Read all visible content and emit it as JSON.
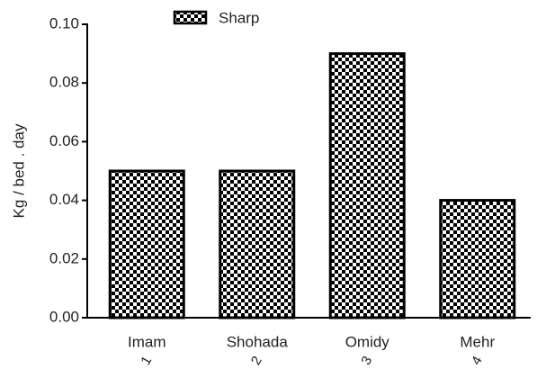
{
  "chart_data": {
    "type": "bar",
    "legend": "Sharp",
    "ylabel": "Kg / bed . day",
    "categories": [
      "Imam",
      "Shohada",
      "Omidy",
      "Mehr"
    ],
    "category_numbers": [
      "1",
      "2",
      "3",
      "4"
    ],
    "values": [
      0.05,
      0.05,
      0.09,
      0.04
    ],
    "color": "#000000",
    "ylim": [
      0,
      0.1
    ],
    "yticks": [
      {
        "value": 0,
        "label": "0.00"
      },
      {
        "value": 0.02,
        "label": "0.02"
      },
      {
        "value": 0.04,
        "label": "0.04"
      },
      {
        "value": 0.06,
        "label": "0.06"
      },
      {
        "value": 0.08,
        "label": "0.08"
      },
      {
        "value": 0.1,
        "label": "0.10"
      }
    ],
    "grid": false
  }
}
